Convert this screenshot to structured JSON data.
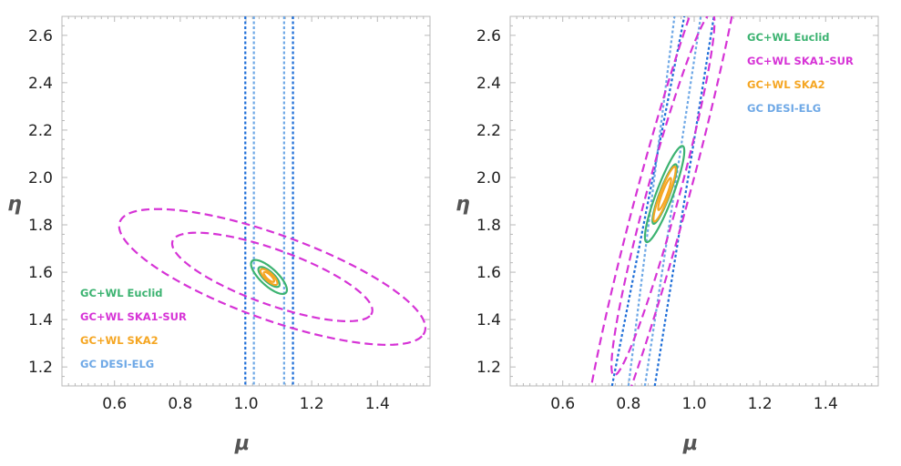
{
  "chart_data": [
    {
      "type": "contour",
      "xlabel": "μ",
      "ylabel": "η",
      "xlim": [
        0.44,
        1.56
      ],
      "ylim": [
        1.12,
        2.68
      ],
      "x_ticks": [
        "0.6",
        "0.8",
        "1.0",
        "1.2",
        "1.4"
      ],
      "y_ticks": [
        "1.2",
        "1.4",
        "1.6",
        "1.8",
        "2.0",
        "2.2",
        "2.4",
        "2.6"
      ],
      "legend_position": "bottom-left",
      "fiducial": {
        "mu": 1.07,
        "eta": 1.58
      },
      "series": [
        {
          "name": "GC+WL Euclid",
          "color": "#3cb371",
          "style": "solid",
          "ellipses": [
            {
              "cx": 1.07,
              "cy": 1.58,
              "a": 0.05,
              "b": 0.018,
              "angle_deg": -55
            },
            {
              "cx": 1.07,
              "cy": 1.58,
              "a": 0.085,
              "b": 0.03,
              "angle_deg": -55
            }
          ]
        },
        {
          "name": "GC+WL SKA1-SUR",
          "color": "#d633d6",
          "style": "dashed",
          "ellipses": [
            {
              "cx": 1.08,
              "cy": 1.58,
              "a": 0.34,
              "b": 0.11,
              "angle_deg": -28
            },
            {
              "cx": 1.08,
              "cy": 1.58,
              "a": 0.52,
              "b": 0.17,
              "angle_deg": -28
            }
          ]
        },
        {
          "name": "GC+WL SKA2",
          "color": "#f5a623",
          "style": "solid",
          "ellipses": [
            {
              "cx": 1.07,
              "cy": 1.58,
              "a": 0.025,
              "b": 0.008,
              "angle_deg": -55
            },
            {
              "cx": 1.07,
              "cy": 1.58,
              "a": 0.04,
              "b": 0.014,
              "angle_deg": -55
            }
          ]
        },
        {
          "name": "GC DESI-ELG",
          "color": "#6ea8e6",
          "style": "dotted",
          "vlines": [
            1.024,
            1.116
          ]
        },
        {
          "name": "GC DESI-ELG",
          "color": "#1f6fd8",
          "style": "dotted",
          "vlines": [
            0.998,
            1.143
          ]
        }
      ]
    },
    {
      "type": "contour",
      "xlabel": "μ",
      "ylabel": "η",
      "xlim": [
        0.44,
        1.56
      ],
      "ylim": [
        1.12,
        2.68
      ],
      "x_ticks": [
        "0.6",
        "0.8",
        "1.0",
        "1.2",
        "1.4"
      ],
      "y_ticks": [
        "1.2",
        "1.4",
        "1.6",
        "1.8",
        "2.0",
        "2.2",
        "2.4",
        "2.6"
      ],
      "legend_position": "top-right",
      "fiducial": {
        "mu": 0.91,
        "eta": 1.93
      },
      "series": [
        {
          "name": "GC+WL Euclid",
          "color": "#3cb371",
          "style": "solid",
          "ellipses": [
            {
              "cx": 0.91,
              "cy": 1.93,
              "a": 0.13,
              "b": 0.016,
              "angle_deg": 75
            },
            {
              "cx": 0.91,
              "cy": 1.93,
              "a": 0.21,
              "b": 0.026,
              "angle_deg": 75
            }
          ]
        },
        {
          "name": "GC+WL SKA1-SUR",
          "color": "#d633d6",
          "style": "dashed",
          "ellipses": [
            {
              "cx": 0.905,
              "cy": 1.93,
              "a": 0.78,
              "b": 0.05,
              "angle_deg": 79
            },
            {
              "cx": 0.905,
              "cy": 1.93,
              "a": 1.25,
              "b": 0.08,
              "angle_deg": 79
            }
          ]
        },
        {
          "name": "GC+WL SKA2",
          "color": "#f5a623",
          "style": "solid",
          "ellipses": [
            {
              "cx": 0.91,
              "cy": 1.93,
              "a": 0.07,
              "b": 0.008,
              "angle_deg": 75
            },
            {
              "cx": 0.91,
              "cy": 1.93,
              "a": 0.12,
              "b": 0.014,
              "angle_deg": 75
            }
          ]
        },
        {
          "name": "GC DESI-ELG",
          "color": "#6ea8e6",
          "style": "dotted",
          "bands": [
            [
              0.8,
              1.12,
              0.94,
              2.68
            ],
            [
              0.85,
              1.12,
              1.02,
              2.68
            ]
          ]
        },
        {
          "name": "GC DESI-ELG",
          "color": "#1f6fd8",
          "style": "dotted",
          "bands": [
            [
              0.75,
              1.12,
              0.97,
              2.68
            ],
            [
              0.88,
              1.12,
              1.06,
              2.68
            ]
          ]
        }
      ]
    }
  ],
  "legend": [
    {
      "label": "GC+WL Euclid",
      "color": "#3cb371"
    },
    {
      "label": "GC+WL SKA1-SUR",
      "color": "#d633d6"
    },
    {
      "label": "GC+WL SKA2",
      "color": "#f5a623"
    },
    {
      "label": "GC DESI-ELG",
      "color": "#6ea8e6"
    }
  ]
}
